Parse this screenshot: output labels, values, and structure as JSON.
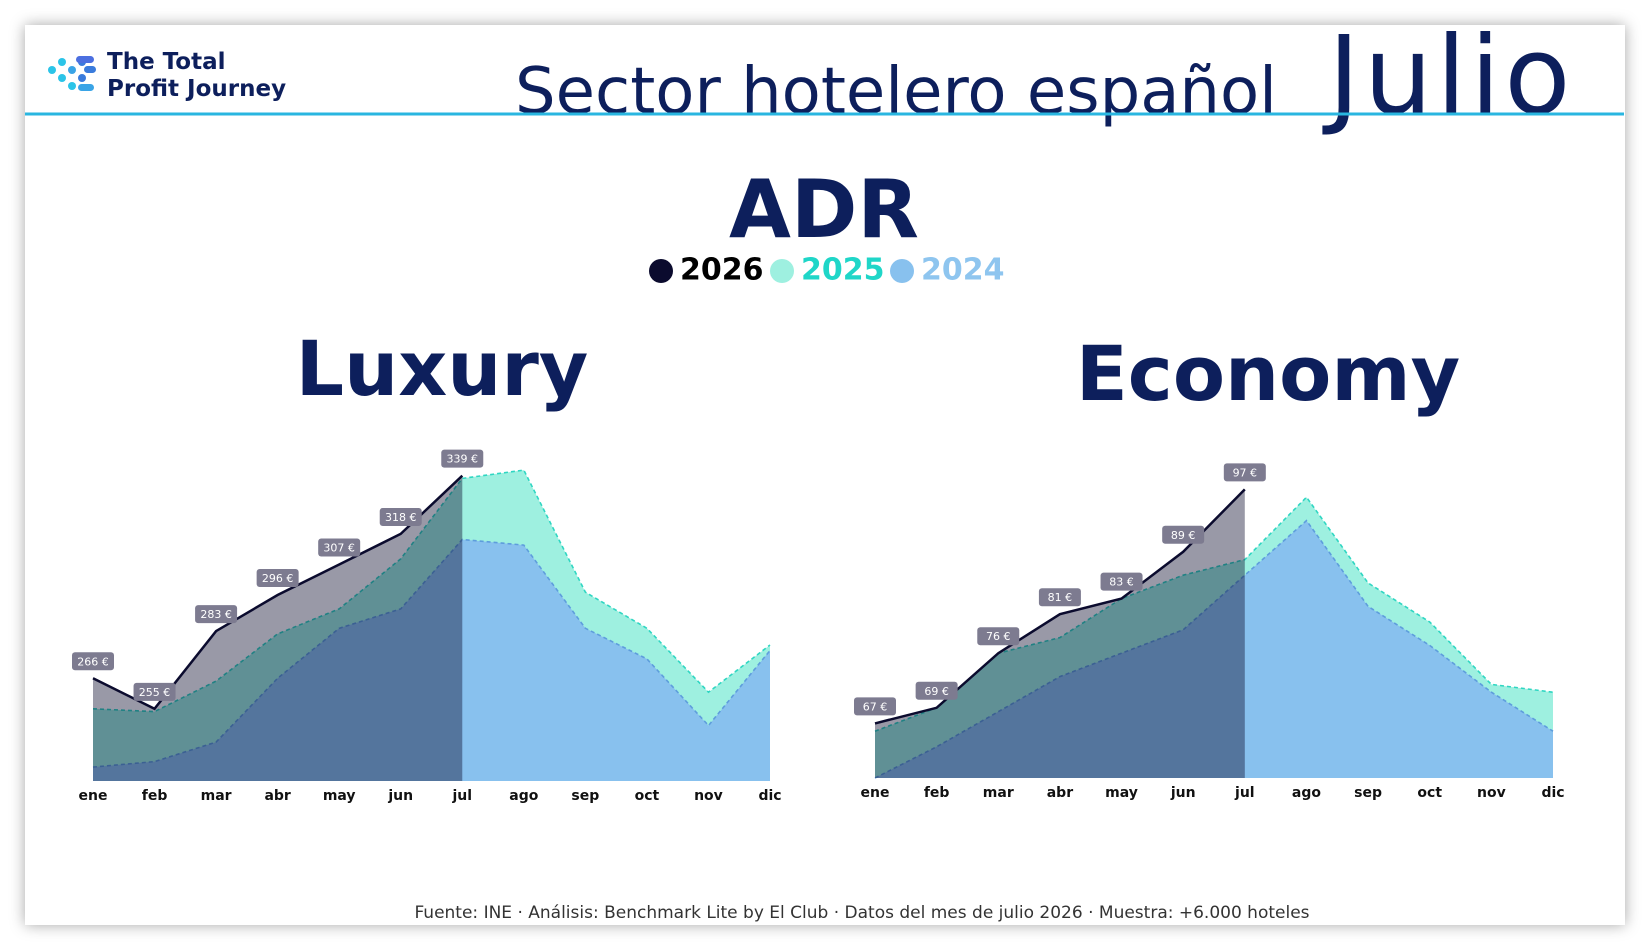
{
  "header": {
    "logo_line1": "The Total",
    "logo_line2": "Profit Journey",
    "title": "Sector hotelero español",
    "month": "Julio"
  },
  "main_title": "ADR",
  "footer": "Fuente: INE · Análisis: Benchmark Lite by El Club ·  Datos del mes de julio 2026  ·   Muestra: +6.000 hoteles",
  "chart_data": [
    {
      "type": "area",
      "title": "Luxury",
      "categories": [
        "ene",
        "feb",
        "mar",
        "abr",
        "may",
        "jun",
        "jul",
        "ago",
        "sep",
        "oct",
        "nov",
        "dic"
      ],
      "ylim": [
        229,
        345
      ],
      "series": [
        {
          "name": "2026",
          "color": "#0b0b2e",
          "line_color": "#0b0b2e",
          "values": [
            266,
            255,
            283,
            296,
            307,
            318,
            339,
            null,
            null,
            null,
            null,
            null
          ],
          "value_labels": [
            "266 €",
            "255 €",
            "283 €",
            "296 €",
            "307 €",
            "318 €",
            "339 €",
            null,
            null,
            null,
            null,
            null
          ]
        },
        {
          "name": "2025",
          "color": "#9ef0e0",
          "line_color": "#2fd6c2",
          "values": [
            255,
            254,
            265,
            282,
            291,
            309,
            338,
            341,
            297,
            284,
            261,
            278
          ]
        },
        {
          "name": "2024",
          "color": "#88c1ee",
          "line_color": "#5e9ddc",
          "values": [
            234,
            236,
            243,
            266,
            284,
            291,
            316,
            314,
            284,
            273,
            249,
            276
          ]
        }
      ]
    },
    {
      "type": "area",
      "title": "Economy",
      "categories": [
        "ene",
        "feb",
        "mar",
        "abr",
        "may",
        "jun",
        "jul",
        "ago",
        "sep",
        "oct",
        "nov",
        "dic"
      ],
      "ylim": [
        60,
        100
      ],
      "series": [
        {
          "name": "2026",
          "color": "#0b0b2e",
          "line_color": "#0b0b2e",
          "values": [
            67,
            69,
            76,
            81,
            83,
            89,
            97,
            null,
            null,
            null,
            null,
            null
          ],
          "value_labels": [
            "67 €",
            "69 €",
            "76 €",
            "81 €",
            "83 €",
            "89 €",
            "97 €",
            null,
            null,
            null,
            null,
            null
          ]
        },
        {
          "name": "2025",
          "color": "#9ef0e0",
          "line_color": "#2fd6c2",
          "values": [
            66,
            69,
            76,
            78,
            83,
            86,
            88,
            96,
            85,
            80,
            72,
            71
          ]
        },
        {
          "name": "2024",
          "color": "#88c1ee",
          "line_color": "#5e9ddc",
          "values": [
            60,
            64,
            68.5,
            73,
            76,
            79,
            86,
            93,
            82,
            77,
            71,
            66
          ]
        }
      ]
    }
  ]
}
